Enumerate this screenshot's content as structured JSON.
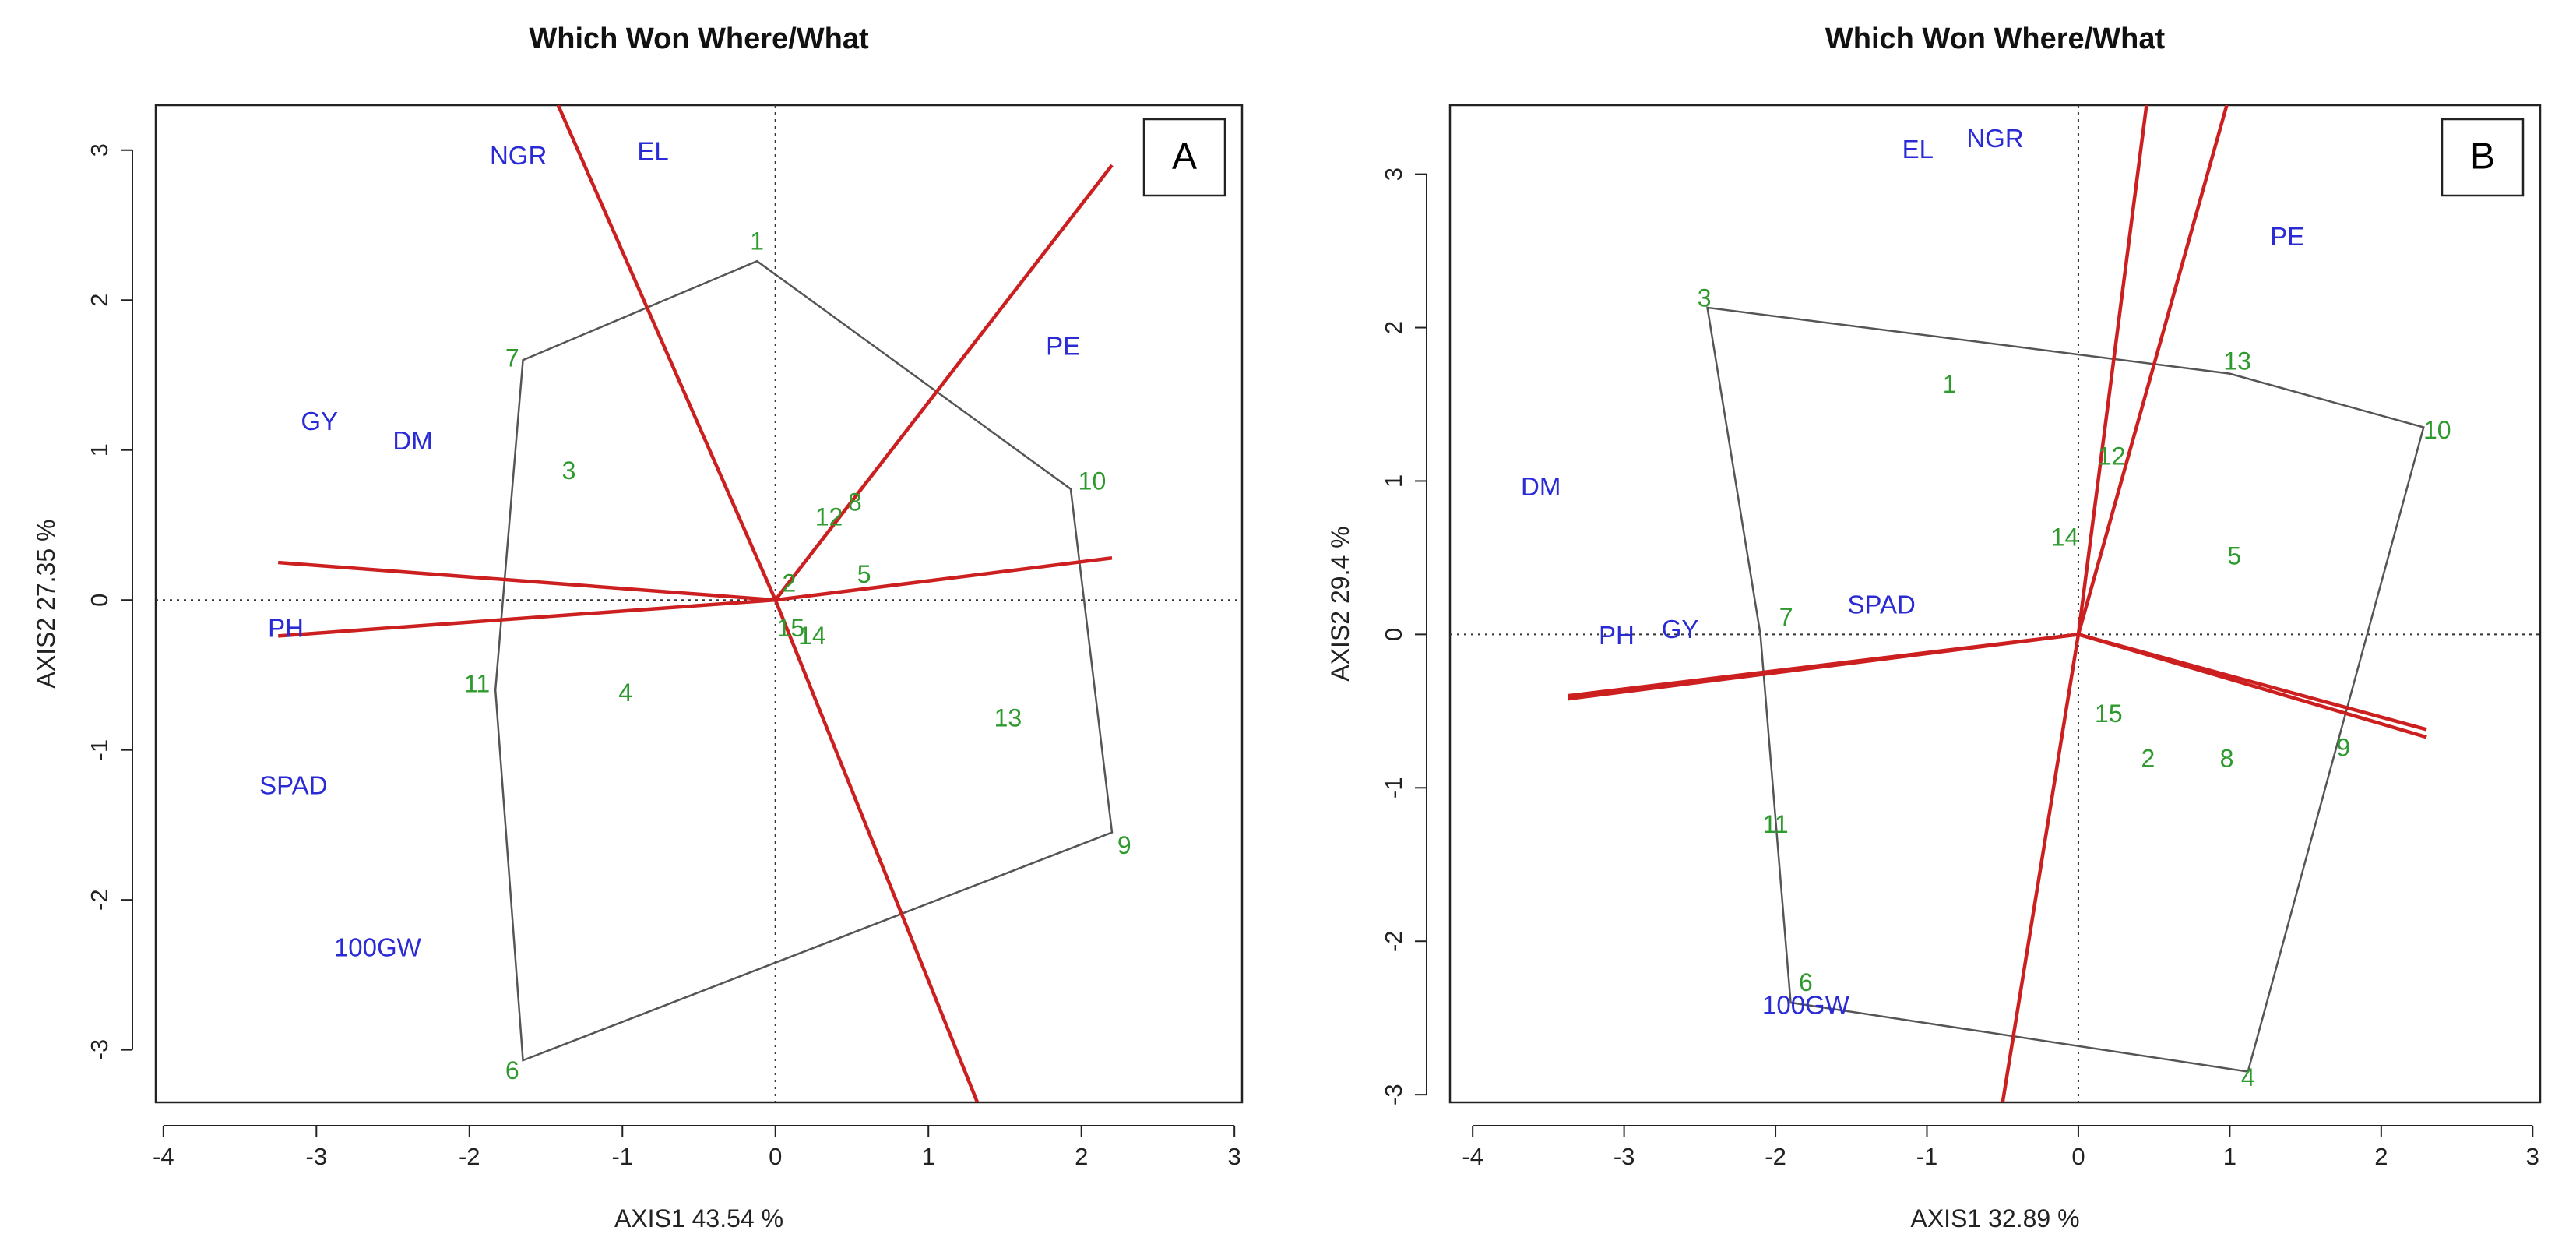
{
  "chart_data": [
    {
      "type": "scatter",
      "panel_label": "A",
      "title": "Which Won Where/What",
      "xlabel": "AXIS1 43.54 %",
      "ylabel": "AXIS2 27.35 %",
      "xlim": [
        -4.05,
        3.05
      ],
      "ylim": [
        -3.35,
        3.3
      ],
      "xticks": [
        -4,
        -3,
        -2,
        -1,
        0,
        1,
        2,
        3
      ],
      "yticks": [
        -3,
        -2,
        -1,
        0,
        1,
        2,
        3
      ],
      "traits": [
        {
          "label": "NGR",
          "x": -1.68,
          "y": 2.95
        },
        {
          "label": "EL",
          "x": -0.8,
          "y": 2.98
        },
        {
          "label": "PE",
          "x": 1.88,
          "y": 1.68
        },
        {
          "label": "GY",
          "x": -2.98,
          "y": 1.18
        },
        {
          "label": "DM",
          "x": -2.37,
          "y": 1.05
        },
        {
          "label": "PH",
          "x": -3.2,
          "y": -0.2
        },
        {
          "label": "SPAD",
          "x": -3.15,
          "y": -1.25
        },
        {
          "label": "100GW",
          "x": -2.6,
          "y": -2.33
        }
      ],
      "genotypes": [
        {
          "label": "1",
          "x": -0.12,
          "y": 2.38
        },
        {
          "label": "2",
          "x": 0.09,
          "y": 0.1
        },
        {
          "label": "3",
          "x": -1.35,
          "y": 0.85
        },
        {
          "label": "4",
          "x": -0.98,
          "y": -0.63
        },
        {
          "label": "5",
          "x": 0.58,
          "y": 0.16
        },
        {
          "label": "6",
          "x": -1.72,
          "y": -3.15
        },
        {
          "label": "7",
          "x": -1.72,
          "y": 1.6
        },
        {
          "label": "8",
          "x": 0.52,
          "y": 0.64
        },
        {
          "label": "9",
          "x": 2.28,
          "y": -1.65
        },
        {
          "label": "10",
          "x": 2.07,
          "y": 0.78
        },
        {
          "label": "11",
          "x": -1.95,
          "y": -0.57
        },
        {
          "label": "12",
          "x": 0.35,
          "y": 0.54
        },
        {
          "label": "13",
          "x": 1.52,
          "y": -0.8
        },
        {
          "label": "14",
          "x": 0.24,
          "y": -0.25
        },
        {
          "label": "15",
          "x": 0.1,
          "y": -0.2
        }
      ],
      "hull": [
        [
          -0.12,
          2.26
        ],
        [
          1.93,
          0.74
        ],
        [
          2.2,
          -1.55
        ],
        [
          -1.65,
          -3.07
        ],
        [
          -1.83,
          -0.6
        ],
        [
          -1.65,
          1.6
        ]
      ],
      "rays": [
        [
          -1.42,
          3.3
        ],
        [
          2.2,
          2.9
        ],
        [
          2.2,
          0.28
        ],
        [
          -3.25,
          0.25
        ],
        [
          -3.25,
          -0.24
        ],
        [
          1.32,
          -3.35
        ]
      ]
    },
    {
      "type": "scatter",
      "panel_label": "B",
      "title": "Which Won Where/What",
      "xlabel": "AXIS1 32.89 %",
      "ylabel": "AXIS2 29.4 %",
      "xlim": [
        -4.15,
        3.05
      ],
      "ylim": [
        -3.05,
        3.45
      ],
      "xticks": [
        -4,
        -3,
        -2,
        -1,
        0,
        1,
        2,
        3
      ],
      "yticks": [
        -3,
        -2,
        -1,
        0,
        1,
        2,
        3
      ],
      "traits": [
        {
          "label": "EL",
          "x": -1.06,
          "y": 3.15
        },
        {
          "label": "NGR",
          "x": -0.55,
          "y": 3.22
        },
        {
          "label": "PE",
          "x": 1.38,
          "y": 2.58
        },
        {
          "label": "DM",
          "x": -3.55,
          "y": 0.95
        },
        {
          "label": "SPAD",
          "x": -1.3,
          "y": 0.18
        },
        {
          "label": "GY",
          "x": -2.63,
          "y": 0.02
        },
        {
          "label": "PH",
          "x": -3.05,
          "y": -0.02
        },
        {
          "label": "100GW",
          "x": -1.8,
          "y": -2.43
        }
      ],
      "genotypes": [
        {
          "label": "1",
          "x": -0.85,
          "y": 1.62
        },
        {
          "label": "2",
          "x": 0.46,
          "y": -0.82
        },
        {
          "label": "3",
          "x": -2.47,
          "y": 2.18
        },
        {
          "label": "4",
          "x": 1.12,
          "y": -2.9
        },
        {
          "label": "5",
          "x": 1.03,
          "y": 0.5
        },
        {
          "label": "6",
          "x": -1.8,
          "y": -2.28
        },
        {
          "label": "7",
          "x": -1.93,
          "y": 0.1
        },
        {
          "label": "8",
          "x": 0.98,
          "y": -0.82
        },
        {
          "label": "9",
          "x": 1.75,
          "y": -0.75
        },
        {
          "label": "10",
          "x": 2.37,
          "y": 1.32
        },
        {
          "label": "11",
          "x": -2.0,
          "y": -1.25
        },
        {
          "label": "12",
          "x": 0.22,
          "y": 1.15
        },
        {
          "label": "13",
          "x": 1.05,
          "y": 1.77
        },
        {
          "label": "14",
          "x": -0.09,
          "y": 0.62
        },
        {
          "label": "15",
          "x": 0.2,
          "y": -0.53
        }
      ],
      "hull": [
        [
          -2.45,
          2.13
        ],
        [
          1.0,
          1.7
        ],
        [
          2.28,
          1.35
        ],
        [
          1.12,
          -2.85
        ],
        [
          -1.9,
          -2.4
        ],
        [
          -2.1,
          0.0
        ]
      ],
      "rays": [
        [
          0.45,
          3.45
        ],
        [
          0.98,
          3.45
        ],
        [
          2.3,
          -0.62
        ],
        [
          2.3,
          -0.67
        ],
        [
          -3.37,
          -0.42
        ],
        [
          -3.37,
          -0.4
        ],
        [
          -0.5,
          -3.05
        ]
      ]
    }
  ],
  "colors": {
    "trait": "#2b2bd6",
    "genotype": "#2e9a2e",
    "ray": "#cc1f1f",
    "hull": "#555555",
    "frame": "#222222"
  }
}
